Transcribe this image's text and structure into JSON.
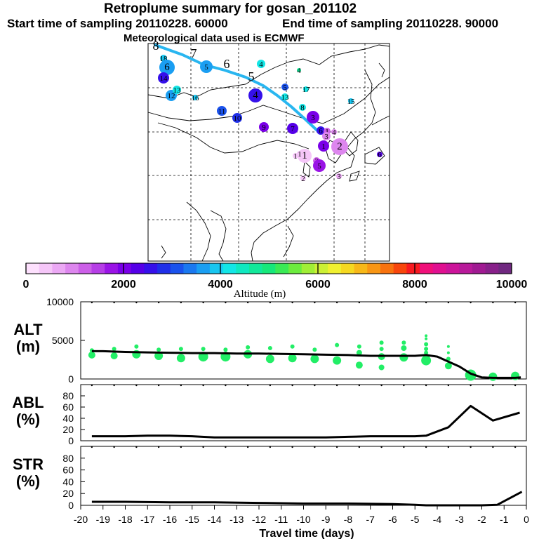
{
  "header": {
    "title": "Retroplume summary for gosan_201102",
    "start": "Start time of sampling 20110228. 60000",
    "end": "End time of sampling 20110228. 90000",
    "met": "Meteorological data used is ECMWF"
  },
  "colors": {
    "track": "#29b6f0",
    "green": "#22ee66",
    "line": "#000000",
    "scale": [
      "#fde0fd",
      "#f5c6f8",
      "#eba8f4",
      "#dd86ee",
      "#cc5fe8",
      "#b63ee6",
      "#9a14e6",
      "#7a00e8",
      "#5500e8",
      "#3510ea",
      "#1f2fe8",
      "#1a52ec",
      "#1a78ef",
      "#1a9ef2",
      "#18c6f0",
      "#13e6e6",
      "#10e8c0",
      "#12e89a",
      "#16e87a",
      "#3aea55",
      "#6cec3e",
      "#a0ee36",
      "#ccf034",
      "#f0f030",
      "#f5d820",
      "#f7b818",
      "#f89614",
      "#f8720e",
      "#f8460c",
      "#f81a20",
      "#f0107a",
      "#e01090",
      "#cc149a",
      "#b81a9a",
      "#a01a92",
      "#88208a",
      "#702880"
    ]
  },
  "map": {
    "clusters": [
      {
        "label": "18",
        "color": "#18c6f0",
        "r": 5
      },
      {
        "label": "6",
        "color": "#1a9ef2",
        "r": 11
      },
      {
        "label": "14",
        "color": "#3510ea",
        "r": 8
      },
      {
        "label": "12",
        "color": "#1a9ef2",
        "r": 8
      },
      {
        "label": "13",
        "color": "#13e6e6",
        "r": 6
      },
      {
        "label": "16",
        "color": "#18c6f0",
        "r": 4
      },
      {
        "label": "5",
        "color": "#1a9ef2",
        "r": 9
      },
      {
        "label": "4",
        "color": "#13e6e6",
        "r": 6
      },
      {
        "label": "4",
        "color": "#12e89a",
        "r": 3
      },
      {
        "label": "4",
        "color": "#3510ea",
        "r": 10
      },
      {
        "label": "13",
        "color": "#13e6e6",
        "r": 5
      },
      {
        "label": "5",
        "color": "#1a52ec",
        "r": 5
      },
      {
        "label": "17",
        "color": "#13e6e6",
        "r": 4
      },
      {
        "label": "11",
        "color": "#1a52ec",
        "r": 7
      },
      {
        "label": "10",
        "color": "#1f2fe8",
        "r": 7
      },
      {
        "label": "8",
        "color": "#13e6e6",
        "r": 5
      },
      {
        "label": "15",
        "color": "#18c6f0",
        "r": 4
      },
      {
        "label": "3",
        "color": "#7a00e8",
        "r": 9
      },
      {
        "label": "9",
        "color": "#7a00e8",
        "r": 7
      },
      {
        "label": "7",
        "color": "#5500e8",
        "r": 8
      },
      {
        "label": "6",
        "color": "#3510ea",
        "r": 6
      },
      {
        "label": "1",
        "color": "#cc5fe8",
        "r": 5
      },
      {
        "label": "4",
        "color": "#dd86ee",
        "r": 4
      },
      {
        "label": "3",
        "color": "#dd86ee",
        "r": 6
      },
      {
        "label": "1",
        "color": "#7a00e8",
        "r": 8
      },
      {
        "label": "2",
        "color": "#dd86ee",
        "r": 12
      },
      {
        "label": "1",
        "color": "#f5c6f8",
        "r": 10
      },
      {
        "label": "1",
        "color": "#f5c6f8",
        "r": 4
      },
      {
        "label": "1",
        "color": "#f5c6f8",
        "r": 4
      },
      {
        "label": "3",
        "color": "#cc5fe8",
        "r": 5
      },
      {
        "label": "5",
        "color": "#9a14e6",
        "r": 9
      },
      {
        "label": "2",
        "color": "#f5c6f8",
        "r": 4
      },
      {
        "label": "3",
        "color": "#eba8f4",
        "r": 4
      },
      {
        "label": "6",
        "color": "#5500e8",
        "r": 4
      }
    ],
    "day_labels": [
      "8",
      "7",
      "6",
      "5"
    ]
  },
  "colorbar": {
    "ticks": [
      "0",
      "2000",
      "4000",
      "6000",
      "8000",
      "10000"
    ],
    "label": "Altitude (m)"
  },
  "chart_data": [
    {
      "type": "line",
      "name": "ALT",
      "ylabel": "ALT\n(m)",
      "ylabel_lines": [
        "ALT",
        "(m)"
      ],
      "ylim": [
        0,
        10000
      ],
      "yticks": [
        "0",
        "5000",
        "10000"
      ],
      "x": [
        -19.5,
        -19,
        -18,
        -17,
        -16,
        -15,
        -14,
        -13,
        -12,
        -11,
        -10,
        -9,
        -8,
        -7,
        -6,
        -5,
        -4.5,
        -4,
        -3,
        -2.5,
        -2,
        -1.5,
        -1,
        -0.5,
        -0.25
      ],
      "values": [
        3600,
        3600,
        3500,
        3450,
        3400,
        3350,
        3350,
        3300,
        3300,
        3250,
        3200,
        3150,
        3100,
        3000,
        3000,
        3000,
        3100,
        2900,
        1600,
        700,
        200,
        150,
        150,
        150,
        200
      ],
      "scatter": [
        {
          "x": -19.5,
          "y": 3100,
          "s": 5
        },
        {
          "x": -19.5,
          "y": 3700,
          "s": 3
        },
        {
          "x": -18.5,
          "y": 3000,
          "s": 5
        },
        {
          "x": -18.5,
          "y": 3900,
          "s": 3
        },
        {
          "x": -17.5,
          "y": 3200,
          "s": 6
        },
        {
          "x": -17.5,
          "y": 4200,
          "s": 3
        },
        {
          "x": -16.5,
          "y": 3000,
          "s": 6
        },
        {
          "x": -16.5,
          "y": 3800,
          "s": 3
        },
        {
          "x": -15.5,
          "y": 2700,
          "s": 6
        },
        {
          "x": -15.5,
          "y": 3900,
          "s": 3
        },
        {
          "x": -14.5,
          "y": 2900,
          "s": 7
        },
        {
          "x": -14.5,
          "y": 3900,
          "s": 3
        },
        {
          "x": -13.5,
          "y": 2900,
          "s": 7
        },
        {
          "x": -13.5,
          "y": 3800,
          "s": 3
        },
        {
          "x": -12.5,
          "y": 3200,
          "s": 6
        },
        {
          "x": -12.5,
          "y": 4100,
          "s": 3
        },
        {
          "x": -11.5,
          "y": 2600,
          "s": 6
        },
        {
          "x": -11.5,
          "y": 4000,
          "s": 3
        },
        {
          "x": -10.5,
          "y": 2700,
          "s": 6
        },
        {
          "x": -10.5,
          "y": 4200,
          "s": 3
        },
        {
          "x": -9.5,
          "y": 2600,
          "s": 6
        },
        {
          "x": -9.5,
          "y": 3800,
          "s": 3
        },
        {
          "x": -8.5,
          "y": 2400,
          "s": 6
        },
        {
          "x": -8.5,
          "y": 4400,
          "s": 3
        },
        {
          "x": -7.5,
          "y": 1800,
          "s": 5
        },
        {
          "x": -7.5,
          "y": 3400,
          "s": 4
        },
        {
          "x": -7.5,
          "y": 4200,
          "s": 3
        },
        {
          "x": -6.5,
          "y": 1500,
          "s": 4
        },
        {
          "x": -6.5,
          "y": 2900,
          "s": 5
        },
        {
          "x": -6.5,
          "y": 3900,
          "s": 3
        },
        {
          "x": -6.5,
          "y": 4700,
          "s": 3
        },
        {
          "x": -5.5,
          "y": 2800,
          "s": 6
        },
        {
          "x": -5.5,
          "y": 4000,
          "s": 4
        },
        {
          "x": -5.5,
          "y": 4700,
          "s": 3
        },
        {
          "x": -4.5,
          "y": 2400,
          "s": 7
        },
        {
          "x": -4.5,
          "y": 3400,
          "s": 3
        },
        {
          "x": -4.5,
          "y": 3900,
          "s": 3
        },
        {
          "x": -4.5,
          "y": 4500,
          "s": 3
        },
        {
          "x": -4.5,
          "y": 5200,
          "s": 2
        },
        {
          "x": -4.5,
          "y": 5600,
          "s": 2
        },
        {
          "x": -3.5,
          "y": 1700,
          "s": 5
        },
        {
          "x": -3.5,
          "y": 2600,
          "s": 3
        },
        {
          "x": -3.5,
          "y": 3400,
          "s": 2
        },
        {
          "x": -3.5,
          "y": 4200,
          "s": 2
        },
        {
          "x": -2.5,
          "y": 500,
          "s": 8
        },
        {
          "x": -1.5,
          "y": 300,
          "s": 6
        },
        {
          "x": -0.5,
          "y": 400,
          "s": 6
        }
      ]
    },
    {
      "type": "line",
      "name": "ABL",
      "ylabel": "ABL\n(%)",
      "ylabel_lines": [
        "ABL",
        "(%)"
      ],
      "ylim": [
        0,
        100
      ],
      "yticks": [
        "0",
        "20",
        "40",
        "60",
        "80"
      ],
      "x": [
        -19.5,
        -18,
        -17,
        -16,
        -15,
        -14,
        -13,
        -12,
        -11,
        -10,
        -9,
        -8,
        -7,
        -6,
        -5,
        -4.5,
        -3.5,
        -2.5,
        -1.5,
        -0.3
      ],
      "values": [
        8,
        8,
        9,
        9,
        8,
        6,
        6,
        6,
        6,
        6,
        6,
        7,
        8,
        8,
        8,
        9,
        24,
        62,
        36,
        50
      ]
    },
    {
      "type": "line",
      "name": "STR",
      "ylabel": "STR\n(%)",
      "ylabel_lines": [
        "STR",
        "(%)"
      ],
      "ylim": [
        0,
        100
      ],
      "yticks": [
        "0",
        "20",
        "40",
        "60",
        "80"
      ],
      "x": [
        -19.5,
        -18,
        -16,
        -14,
        -12,
        -10,
        -8,
        -6,
        -5,
        -4.5,
        -3,
        -2,
        -1.3,
        -0.2
      ],
      "values": [
        6,
        6,
        5,
        5,
        4,
        3,
        3,
        2,
        1,
        0,
        0,
        0,
        1,
        23
      ]
    }
  ],
  "xaxis": {
    "ticks": [
      "-20",
      "-19",
      "-18",
      "-17",
      "-16",
      "-15",
      "-14",
      "-13",
      "-12",
      "-11",
      "-10",
      "-9",
      "-8",
      "-7",
      "-6",
      "-5",
      "-4",
      "-3",
      "-2",
      "-1",
      "0"
    ],
    "label": "Travel time (days)"
  }
}
